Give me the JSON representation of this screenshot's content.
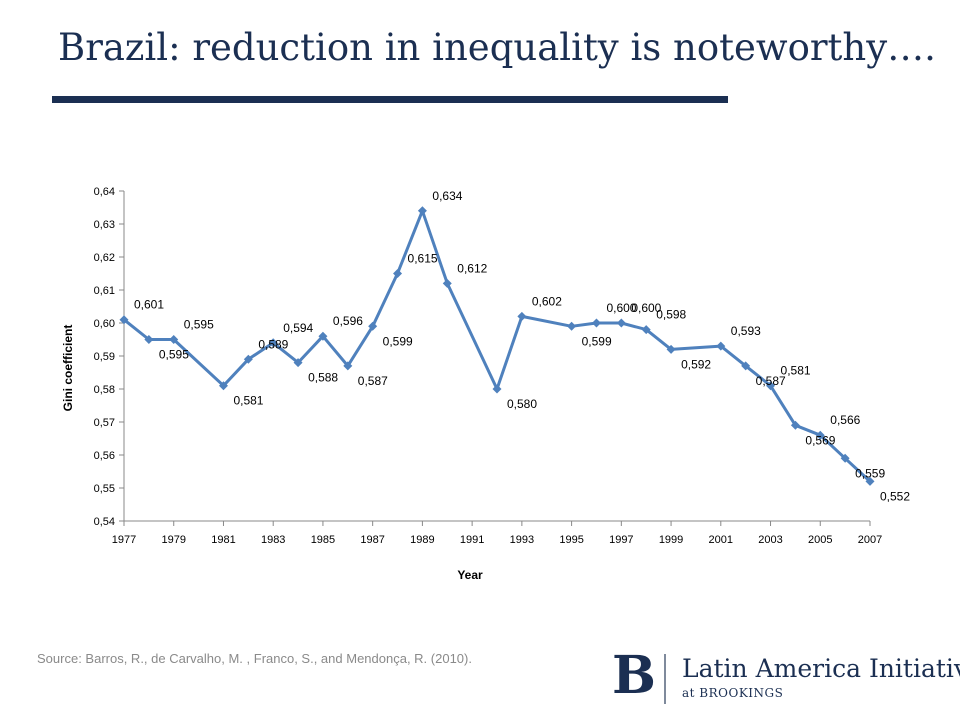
{
  "slide": {
    "title": "Brazil: reduction in inequality is noteworthy….",
    "source": "Source: Barros, R., de Carvalho, M. , Franco, S., and Mendonça, R. (2010)."
  },
  "logo": {
    "mark": "B",
    "name": "Latin America Initiative",
    "sub": "at BROOKINGS"
  },
  "colors": {
    "title": "#1b2f52",
    "series": "#4f81bd",
    "axis": "#888888"
  },
  "chart_data": {
    "type": "line",
    "title": "",
    "xlabel": "Year",
    "ylabel": "Gini coefficient",
    "x": [
      1977,
      1978,
      1979,
      1981,
      1982,
      1983,
      1984,
      1985,
      1986,
      1987,
      1988,
      1989,
      1990,
      1992,
      1993,
      1995,
      1996,
      1997,
      1998,
      1999,
      2001,
      2002,
      2003,
      2004,
      2005,
      2006,
      2007
    ],
    "series": [
      {
        "values": [
          0.601,
          0.595,
          0.595,
          0.581,
          0.589,
          0.594,
          0.588,
          0.596,
          0.587,
          0.599,
          0.615,
          0.634,
          0.612,
          0.58,
          0.602,
          0.599,
          0.6,
          0.6,
          0.598,
          0.592,
          0.593,
          0.587,
          0.581,
          0.569,
          0.566,
          0.559,
          0.552
        ],
        "labels": [
          "0,601",
          "0,595",
          "0,595",
          "0,581",
          "0,589",
          "0,594",
          "0,588",
          "0,596",
          "0,587",
          "0,599",
          "0,615",
          "0,634",
          "0,612",
          "0,580",
          "0,602",
          "0,599",
          "0,600",
          "0,600",
          "0,598",
          "0,592",
          "0,593",
          "0,587",
          "0,581",
          "0,569",
          "0,566",
          "0,559",
          "0,552"
        ]
      }
    ],
    "xlim": [
      1977,
      2007
    ],
    "ylim": [
      0.54,
      0.64
    ],
    "xticks": [
      "1977",
      "1979",
      "1981",
      "1983",
      "1985",
      "1987",
      "1989",
      "1991",
      "1993",
      "1995",
      "1997",
      "1999",
      "2001",
      "2003",
      "2005",
      "2007"
    ],
    "yticks": [
      "0,54",
      "0,55",
      "0,56",
      "0,57",
      "0,58",
      "0,59",
      "0,60",
      "0,61",
      "0,62",
      "0,63",
      "0,64"
    ],
    "grid": false,
    "legend": "none"
  }
}
